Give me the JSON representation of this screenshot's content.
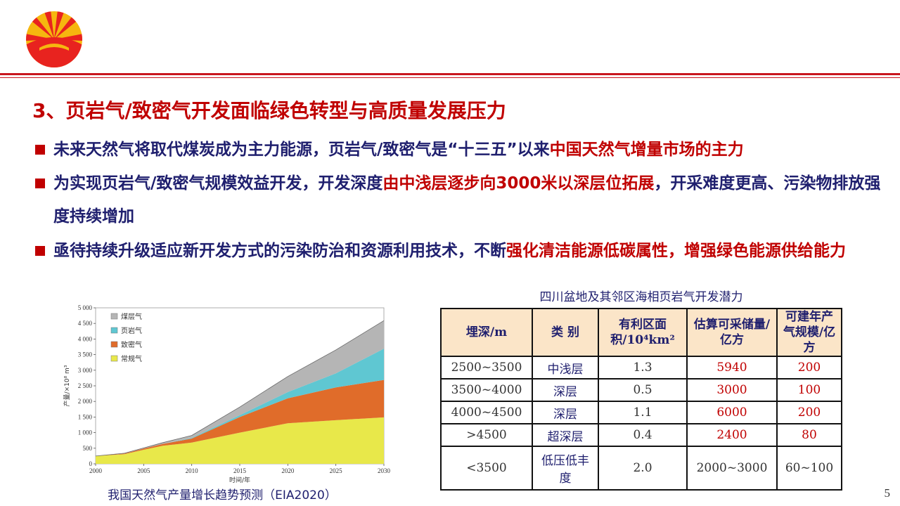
{
  "title": "3、页岩气/致密气开发面临绿色转型与高质量发展压力",
  "bullets": [
    {
      "parts": [
        "未来天然气将取代煤炭成为主力能源，页岩气/致密气是“十三五”以来",
        "中国天然气增量市场的主力"
      ]
    },
    {
      "parts": [
        "为实现页岩气/致密气规模效益开发，开发深度",
        "由中浅层逐步向3000米以深层位拓展",
        "，开采难度更高、污染物排放强度持续增加"
      ]
    },
    {
      "parts": [
        "亟待持续升级适应新开发方式的污染防治和资源利用技术，不断",
        "强化清洁能源低碳属性，增强绿色能源供给能力"
      ]
    }
  ],
  "chart_caption": "我国天然气产量增长趋势预测（EIA2020）",
  "chart_data": {
    "type": "area",
    "stacked": true,
    "xlabel": "时间/年",
    "ylabel": "产量/×10⁸ m³",
    "xlim": [
      2000,
      2030
    ],
    "ylim": [
      0,
      5000
    ],
    "xticks": [
      "2000",
      "2005",
      "2010",
      "2015",
      "2020",
      "2025",
      "2030"
    ],
    "yticks": [
      "0",
      "500",
      "1 000",
      "1 500",
      "2 000",
      "2 500",
      "3 000",
      "3 500",
      "4 000",
      "4 500",
      "5 000"
    ],
    "legend_position": "top-left",
    "x": [
      2000,
      2003,
      2005,
      2007,
      2010,
      2015,
      2020,
      2025,
      2030
    ],
    "series": [
      {
        "name": "常规气",
        "color": "#e8e84a",
        "values": [
          250,
          310,
          450,
          580,
          680,
          1000,
          1300,
          1400,
          1490
        ]
      },
      {
        "name": "致密气",
        "color": "#e06c2a",
        "values": [
          0,
          20,
          40,
          60,
          130,
          500,
          800,
          1050,
          1200
        ]
      },
      {
        "name": "页岩气",
        "color": "#5fc7d2",
        "values": [
          0,
          0,
          0,
          0,
          20,
          60,
          200,
          450,
          1000
        ]
      },
      {
        "name": "煤层气",
        "color": "#b5b5b5",
        "values": [
          0,
          10,
          20,
          40,
          80,
          260,
          500,
          750,
          900
        ]
      }
    ]
  },
  "table": {
    "title": "四川盆地及其邻区海相页岩气开发潜力",
    "headers": [
      "埋深/m",
      "类 别",
      "有利区面积/10⁴km²",
      "估算可采储量/亿方",
      "可建年产气规模/亿方"
    ],
    "rows": [
      [
        "2500~3500",
        "中浅层",
        "1.3",
        "5940",
        "200"
      ],
      [
        "3500~4000",
        "深层",
        "0.5",
        "3000",
        "100"
      ],
      [
        "4000~4500",
        "深层",
        "1.1",
        "6000",
        "200"
      ],
      [
        ">4500",
        "超深层",
        "0.4",
        "2400",
        "80"
      ],
      [
        "<3500",
        "低压低丰度",
        "2.0",
        "2000~3000",
        "60~100"
      ]
    ]
  },
  "page_number": "5"
}
